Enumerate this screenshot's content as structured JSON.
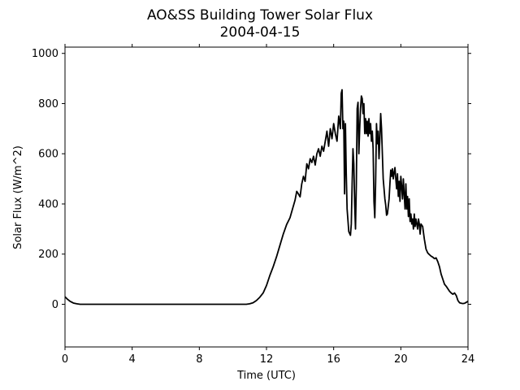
{
  "chart_data": {
    "type": "line",
    "title": "AO&SS Building Tower Solar Flux",
    "subtitle": "2004-04-15",
    "xlabel": "Time (UTC)",
    "ylabel": "Solar Flux (W/m^2)",
    "xlim": [
      0,
      24
    ],
    "ylim": [
      -170,
      1025
    ],
    "x_ticks": [
      0,
      4,
      8,
      12,
      16,
      20,
      24
    ],
    "y_ticks": [
      0,
      200,
      400,
      600,
      800,
      1000
    ],
    "grid": false,
    "line_color": "#000000",
    "series": [
      {
        "points": [
          [
            0.0,
            30
          ],
          [
            0.15,
            20
          ],
          [
            0.3,
            12
          ],
          [
            0.5,
            5
          ],
          [
            0.7,
            2
          ],
          [
            0.9,
            0
          ],
          [
            1.2,
            0
          ],
          [
            4.0,
            0
          ],
          [
            8.0,
            0
          ],
          [
            10.8,
            0
          ],
          [
            11.0,
            2
          ],
          [
            11.2,
            6
          ],
          [
            11.4,
            15
          ],
          [
            11.6,
            28
          ],
          [
            11.8,
            45
          ],
          [
            12.0,
            75
          ],
          [
            12.2,
            115
          ],
          [
            12.4,
            150
          ],
          [
            12.6,
            190
          ],
          [
            12.8,
            235
          ],
          [
            13.0,
            280
          ],
          [
            13.2,
            318
          ],
          [
            13.4,
            345
          ],
          [
            13.55,
            380
          ],
          [
            13.7,
            415
          ],
          [
            13.8,
            450
          ],
          [
            13.9,
            440
          ],
          [
            14.0,
            428
          ],
          [
            14.1,
            480
          ],
          [
            14.2,
            510
          ],
          [
            14.3,
            490
          ],
          [
            14.4,
            560
          ],
          [
            14.5,
            540
          ],
          [
            14.6,
            580
          ],
          [
            14.7,
            565
          ],
          [
            14.8,
            590
          ],
          [
            14.9,
            555
          ],
          [
            15.0,
            600
          ],
          [
            15.1,
            620
          ],
          [
            15.2,
            590
          ],
          [
            15.3,
            630
          ],
          [
            15.4,
            610
          ],
          [
            15.5,
            650
          ],
          [
            15.6,
            690
          ],
          [
            15.7,
            630
          ],
          [
            15.8,
            700
          ],
          [
            15.9,
            660
          ],
          [
            16.0,
            720
          ],
          [
            16.1,
            680
          ],
          [
            16.2,
            650
          ],
          [
            16.3,
            750
          ],
          [
            16.4,
            700
          ],
          [
            16.45,
            840
          ],
          [
            16.5,
            855
          ],
          [
            16.55,
            700
          ],
          [
            16.6,
            730
          ],
          [
            16.65,
            440
          ],
          [
            16.7,
            720
          ],
          [
            16.75,
            520
          ],
          [
            16.8,
            380
          ],
          [
            16.9,
            290
          ],
          [
            17.0,
            275
          ],
          [
            17.05,
            320
          ],
          [
            17.1,
            480
          ],
          [
            17.15,
            620
          ],
          [
            17.2,
            560
          ],
          [
            17.25,
            400
          ],
          [
            17.3,
            300
          ],
          [
            17.35,
            480
          ],
          [
            17.4,
            780
          ],
          [
            17.45,
            805
          ],
          [
            17.5,
            600
          ],
          [
            17.55,
            700
          ],
          [
            17.6,
            780
          ],
          [
            17.65,
            830
          ],
          [
            17.7,
            820
          ],
          [
            17.75,
            760
          ],
          [
            17.8,
            800
          ],
          [
            17.85,
            680
          ],
          [
            17.9,
            740
          ],
          [
            17.95,
            680
          ],
          [
            18.0,
            730
          ],
          [
            18.05,
            670
          ],
          [
            18.1,
            740
          ],
          [
            18.15,
            680
          ],
          [
            18.2,
            720
          ],
          [
            18.25,
            650
          ],
          [
            18.3,
            690
          ],
          [
            18.35,
            620
          ],
          [
            18.4,
            410
          ],
          [
            18.45,
            345
          ],
          [
            18.5,
            490
          ],
          [
            18.55,
            720
          ],
          [
            18.6,
            640
          ],
          [
            18.65,
            690
          ],
          [
            18.7,
            580
          ],
          [
            18.75,
            660
          ],
          [
            18.8,
            760
          ],
          [
            18.85,
            700
          ],
          [
            18.9,
            600
          ],
          [
            18.95,
            500
          ],
          [
            19.0,
            460
          ],
          [
            19.05,
            420
          ],
          [
            19.1,
            395
          ],
          [
            19.15,
            355
          ],
          [
            19.2,
            360
          ],
          [
            19.3,
            420
          ],
          [
            19.35,
            480
          ],
          [
            19.4,
            535
          ],
          [
            19.45,
            510
          ],
          [
            19.5,
            540
          ],
          [
            19.55,
            500
          ],
          [
            19.6,
            525
          ],
          [
            19.65,
            545
          ],
          [
            19.7,
            500
          ],
          [
            19.75,
            460
          ],
          [
            19.8,
            520
          ],
          [
            19.85,
            430
          ],
          [
            19.9,
            490
          ],
          [
            19.95,
            410
          ],
          [
            20.0,
            510
          ],
          [
            20.05,
            470
          ],
          [
            20.1,
            420
          ],
          [
            20.15,
            500
          ],
          [
            20.2,
            440
          ],
          [
            20.25,
            380
          ],
          [
            20.3,
            480
          ],
          [
            20.35,
            380
          ],
          [
            20.4,
            430
          ],
          [
            20.45,
            350
          ],
          [
            20.5,
            420
          ],
          [
            20.55,
            330
          ],
          [
            20.6,
            360
          ],
          [
            20.65,
            320
          ],
          [
            20.7,
            340
          ],
          [
            20.75,
            300
          ],
          [
            20.8,
            360
          ],
          [
            20.85,
            310
          ],
          [
            20.9,
            340
          ],
          [
            20.95,
            320
          ],
          [
            21.0,
            300
          ],
          [
            21.05,
            340
          ],
          [
            21.1,
            320
          ],
          [
            21.15,
            280
          ],
          [
            21.2,
            320
          ],
          [
            21.3,
            310
          ],
          [
            21.4,
            260
          ],
          [
            21.5,
            220
          ],
          [
            21.6,
            205
          ],
          [
            21.7,
            198
          ],
          [
            21.8,
            192
          ],
          [
            21.9,
            188
          ],
          [
            22.0,
            182
          ],
          [
            22.1,
            185
          ],
          [
            22.2,
            170
          ],
          [
            22.3,
            150
          ],
          [
            22.4,
            120
          ],
          [
            22.5,
            100
          ],
          [
            22.6,
            80
          ],
          [
            22.7,
            72
          ],
          [
            22.8,
            62
          ],
          [
            22.9,
            52
          ],
          [
            23.0,
            45
          ],
          [
            23.1,
            40
          ],
          [
            23.2,
            45
          ],
          [
            23.3,
            35
          ],
          [
            23.4,
            15
          ],
          [
            23.5,
            6
          ],
          [
            23.6,
            4
          ],
          [
            23.7,
            3
          ],
          [
            23.8,
            4
          ],
          [
            23.9,
            8
          ],
          [
            24.0,
            12
          ]
        ]
      }
    ]
  }
}
